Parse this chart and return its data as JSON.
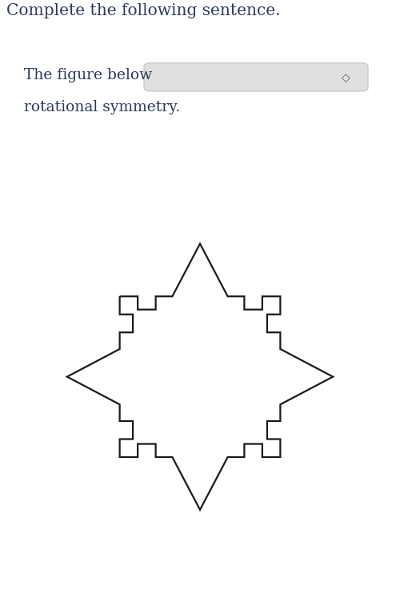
{
  "title": "Complete the following sentence.",
  "sentence_line1": "The figure below",
  "sentence_line2": "rotational symmetry.",
  "bg_color": "#ffffff",
  "text_color": "#2b3a5c",
  "line_color": "#1a1a1a",
  "line_width": 1.6,
  "fig_width": 5.0,
  "fig_height": 7.47,
  "dpi": 100,
  "s": 0.58,
  "a": 0.2,
  "ah": 0.38,
  "n1": 0.13,
  "n2": 0.095
}
